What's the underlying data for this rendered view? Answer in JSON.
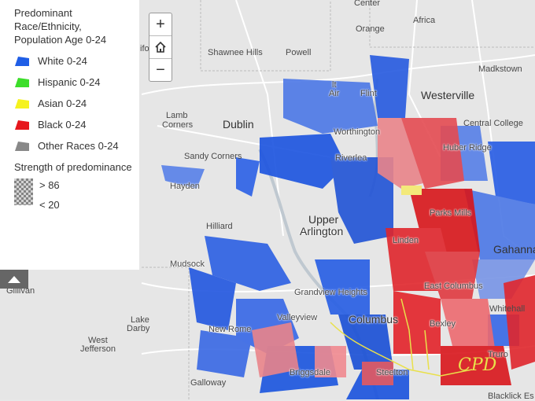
{
  "legend": {
    "title": "Predominant Race/Ethnicity, Population Age 0-24",
    "items": [
      {
        "label": "White 0-24",
        "color": "#1f5ee6",
        "icon": "blue-swatch-icon"
      },
      {
        "label": "Hispanic 0-24",
        "color": "#3cde2a",
        "icon": "green-swatch-icon"
      },
      {
        "label": "Asian 0-24",
        "color": "#f5f21e",
        "icon": "yellow-swatch-icon"
      },
      {
        "label": "Black 0-24",
        "color": "#e6171d",
        "icon": "red-swatch-icon"
      },
      {
        "label": "Other Races 0-24",
        "color": "#888888",
        "icon": "gray-swatch-icon"
      }
    ],
    "strength_title": "Strength of predominance",
    "strength_high": "> 86",
    "strength_low": "< 20"
  },
  "zoom": {
    "in": "+",
    "home": "⌂",
    "out": "−"
  },
  "places": {
    "center": "Center",
    "africa": "Africa",
    "orange": "Orange",
    "galena": "ifo",
    "shawnee": "Shawnee Hills",
    "powell": "Powell",
    "madkstown": "Madkstown",
    "worth_top": "lt",
    "air": "Air",
    "flint": "Flint",
    "westerville": "Westerville",
    "lamb": "Lamb",
    "corners": "Corners",
    "dublin": "Dublin",
    "central_college": "Central College",
    "worthington": "Worthington",
    "huber": "Huber Ridge",
    "sandy": "Sandy Corners",
    "riverlea": "Riverlea",
    "hayden": "Hayden",
    "upper": "Upper",
    "arlington": "Arlington",
    "parks": "Parks Mills",
    "hilliard": "Hilliard",
    "linden": "Linden",
    "gahanna": "Gahanna",
    "mudsock": "Mudsock",
    "gillivan": "Gillivan",
    "east_columbus": "East Columbus",
    "grandview": "Grandview Heights",
    "whitehall": "Whitehall",
    "lake": "Lake",
    "darby": "Darby",
    "valleyview": "Valleyview",
    "columbus": "Columbus",
    "bexley": "Bexley",
    "west": "West",
    "jefferson": "Jefferson",
    "new_rome": "New Rome",
    "truro": "Truro",
    "briggsdale": "Briggsdale",
    "steelton": "Steelton",
    "galloway": "Galloway",
    "blacklick": "Blacklick Es"
  },
  "annotation": "CPD"
}
